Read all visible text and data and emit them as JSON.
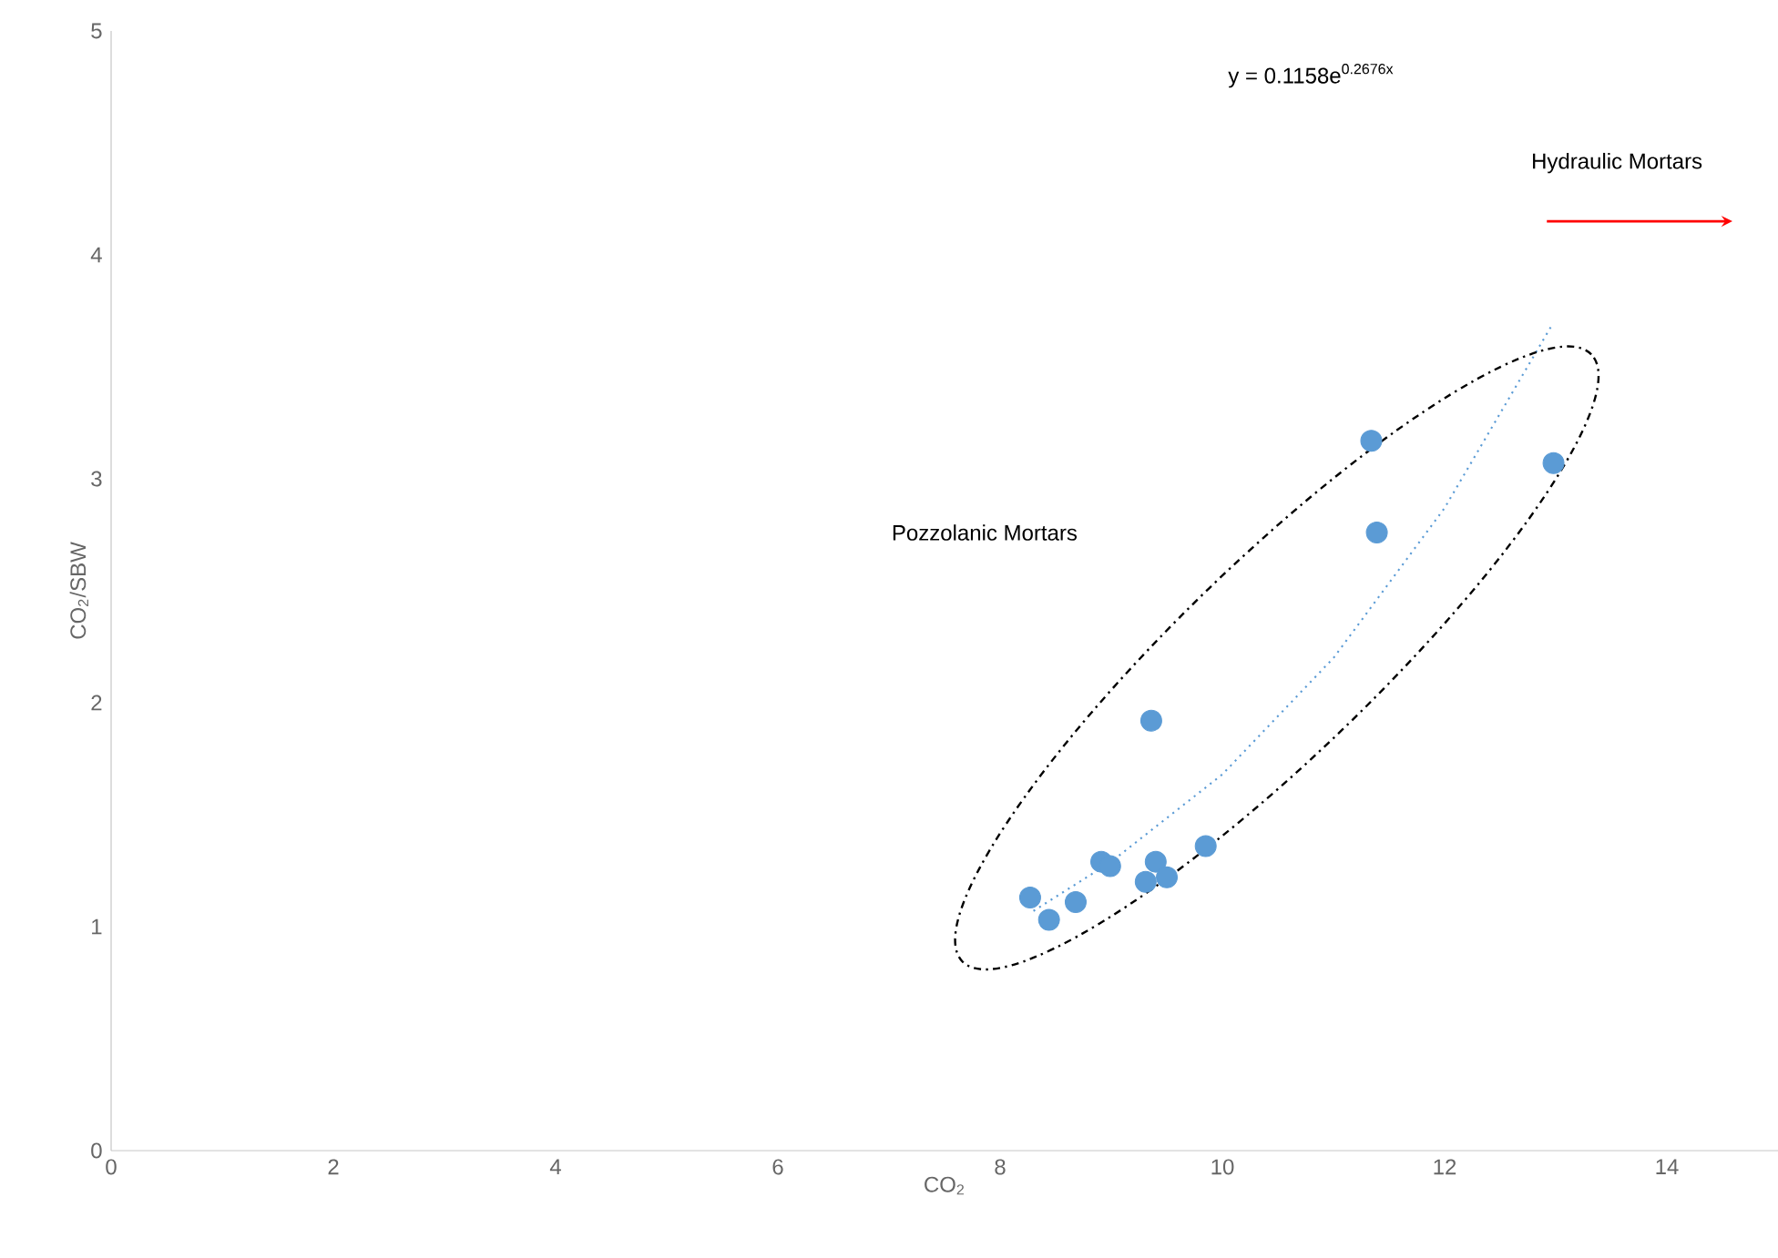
{
  "chart_data": {
    "type": "scatter",
    "xlabel": "CO$_{2}$",
    "ylabel": "CO$_{2}$/SBW",
    "xlim": [
      0,
      15
    ],
    "ylim": [
      0,
      5
    ],
    "xticks": [
      0,
      2,
      4,
      6,
      8,
      10,
      12,
      14
    ],
    "yticks": [
      0,
      1,
      2,
      3,
      4,
      5
    ],
    "grid": false,
    "series": [
      {
        "color": "#5b9bd5",
        "marker": "circle",
        "x": [
          8.27,
          8.44,
          8.68,
          8.91,
          8.99,
          9.31,
          9.4,
          9.5,
          9.36,
          9.85,
          11.34,
          11.39,
          12.98
        ],
        "values": [
          1.13,
          1.03,
          1.11,
          1.29,
          1.27,
          1.2,
          1.29,
          1.22,
          1.92,
          1.36,
          3.17,
          2.76,
          3.07
        ]
      },
      {
        "type": "line",
        "color": "#5b9bd5",
        "marker": "none",
        "line_style": "dotted",
        "x": [
          8.3,
          9,
          10,
          11,
          12,
          12.97
        ],
        "values": [
          1.07,
          1.29,
          1.68,
          2.2,
          2.87,
          3.69
        ]
      }
    ],
    "annotations": [
      "y = 0.1158e$^{0.2676x}$",
      "Pozzolanic Mortars",
      "Hydraulic Mortars"
    ]
  }
}
